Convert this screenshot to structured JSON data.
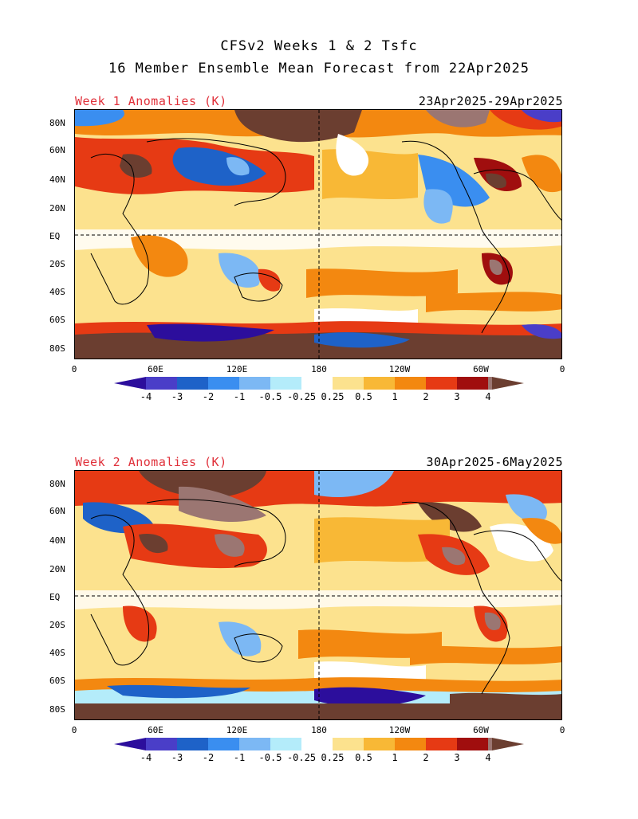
{
  "title": {
    "line1": "CFSv2 Weeks 1 & 2 Tsfc",
    "line2": "16 Member Ensemble Mean Forecast from 22Apr2025"
  },
  "panels": [
    {
      "label": "Week 1 Anomalies (K)",
      "date_range": "23Apr2025-29Apr2025"
    },
    {
      "label": "Week 2 Anomalies (K)",
      "date_range": "30Apr2025-6May2025"
    }
  ],
  "lat_ticks": [
    "80N",
    "60N",
    "40N",
    "20N",
    "EQ",
    "20S",
    "40S",
    "60S",
    "80S"
  ],
  "lon_ticks": [
    "0",
    "60E",
    "120E",
    "180",
    "120W",
    "60W",
    "0"
  ],
  "colorbar": {
    "labels": [
      "-4",
      "-3",
      "-2",
      "-1",
      "-0.5",
      "-0.25",
      "0.25",
      "0.5",
      "1",
      "2",
      "3",
      "4"
    ],
    "colors": [
      "#2c0e9c",
      "#4a3ec8",
      "#1e62c8",
      "#3a8ef0",
      "#7cb8f4",
      "#b4ecfa",
      "#ffffff",
      "#fce28e",
      "#f8b836",
      "#f38810",
      "#e63a14",
      "#a00e0e",
      "#9b7672",
      "#6b3e30"
    ]
  },
  "map": {
    "equator_lat": 0,
    "dateline_lon": 180
  }
}
